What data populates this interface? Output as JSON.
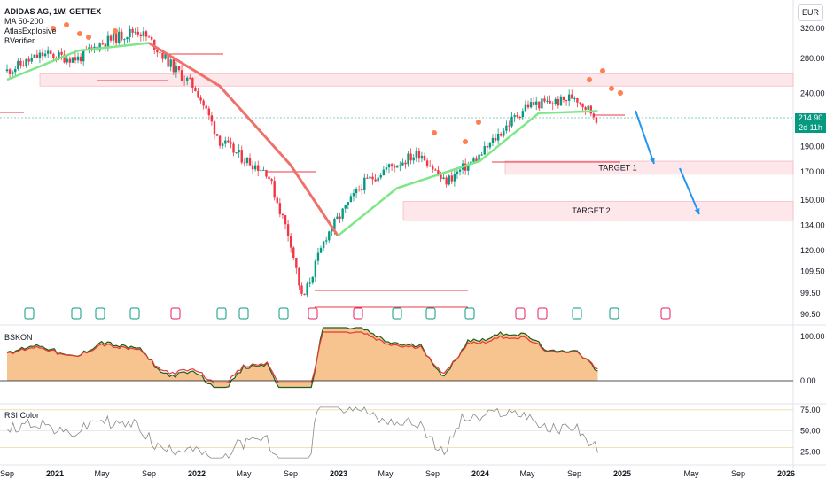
{
  "header": {
    "title": "ADIDAS AG, 1W, GETTEX",
    "indicators": [
      "MA 50-200",
      "AtlasExplosive",
      "BVerifier"
    ],
    "currency": "EUR"
  },
  "price_badge": {
    "price": "214.90",
    "countdown": "2d 11h"
  },
  "panes": {
    "osc_label": "BSKON",
    "rsi_label": "RSI Color"
  },
  "colors": {
    "up": "#089981",
    "down": "#f23645",
    "ma_fast": "#7ee787",
    "ma_slow": "#f0716b",
    "zone": "#fde7ea",
    "zone_border": "#f4a8b2",
    "arrow": "#2196f3",
    "rsi_line": "#8a8a8a"
  },
  "chart_data": [
    {
      "type": "candlestick",
      "title": "ADIDAS AG, 1W, GETTEX",
      "y_axis_ticks": [
        320.0,
        280.0,
        240.0,
        214.9,
        190.0,
        170.0,
        150.0,
        134.0,
        120.0,
        109.5,
        99.5,
        90.5
      ],
      "x_axis_ticks": [
        "Sep",
        "2021",
        "May",
        "Sep",
        "2022",
        "May",
        "Sep",
        "2023",
        "May",
        "Sep",
        "2024",
        "May",
        "Sep",
        "2025",
        "May",
        "Sep",
        "2026"
      ],
      "ylim": [
        88,
        330
      ],
      "scale": "log",
      "last_price": 214.9,
      "price_path": [
        [
          "2020-09",
          265
        ],
        [
          "2020-12",
          285
        ],
        [
          "2021-03",
          280
        ],
        [
          "2021-05",
          300
        ],
        [
          "2021-08",
          318
        ],
        [
          "2021-09",
          305
        ],
        [
          "2021-11",
          270
        ],
        [
          "2022-01",
          245
        ],
        [
          "2022-03",
          195
        ],
        [
          "2022-05",
          180
        ],
        [
          "2022-07",
          170
        ],
        [
          "2022-09",
          125
        ],
        [
          "2022-10",
          96
        ],
        [
          "2022-12",
          128
        ],
        [
          "2023-03",
          160
        ],
        [
          "2023-05",
          172
        ],
        [
          "2023-08",
          185
        ],
        [
          "2023-10",
          162
        ],
        [
          "2024-01",
          182
        ],
        [
          "2024-03",
          205
        ],
        [
          "2024-05",
          228
        ],
        [
          "2024-08",
          232
        ],
        [
          "2024-09",
          238
        ],
        [
          "2024-11",
          214.9
        ]
      ],
      "series": [
        {
          "name": "MA 50-200",
          "kind": "ma",
          "values": [
            [
              "2020-09",
              255
            ],
            [
              "2021-03",
              290
            ],
            [
              "2021-09",
              300
            ],
            [
              "2022-03",
              248
            ],
            [
              "2022-09",
              175
            ],
            [
              "2023-01",
              128
            ],
            [
              "2023-06",
              158
            ],
            [
              "2024-01",
              178
            ],
            [
              "2024-06",
              220
            ],
            [
              "2024-11",
              222
            ]
          ]
        }
      ],
      "zones": [
        {
          "price_low": 248,
          "price_high": 262
        },
        {
          "label": "TARGET 1",
          "price_low": 168,
          "price_high": 178
        },
        {
          "label": "TARGET 2",
          "price_low": 137,
          "price_high": 149
        }
      ],
      "annotations": [
        "TARGET 1",
        "TARGET 2"
      ]
    },
    {
      "type": "area",
      "title": "BSKON",
      "y_axis_ticks": [
        100.0,
        0.0
      ],
      "ylim": [
        -30,
        140
      ]
    },
    {
      "type": "line",
      "title": "RSI Color",
      "y_axis_ticks": [
        75.0,
        50.0,
        25.0
      ],
      "ylim": [
        15,
        80
      ],
      "levels": [
        75,
        50,
        30
      ]
    }
  ]
}
